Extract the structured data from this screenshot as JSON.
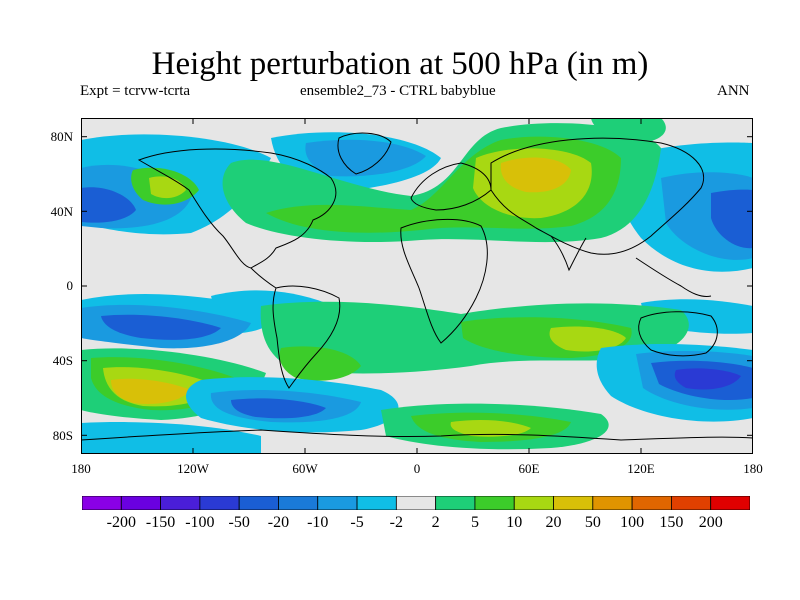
{
  "title": "Height perturbation at 500 hPa (in m)",
  "subtitle_left": "Expt = tcrvw-tcrta",
  "subtitle_center": "ensemble2_73 - CTRL babyblue",
  "subtitle_right": "ANN",
  "y_labels": [
    "80N",
    "40N",
    "0",
    "40S",
    "80S"
  ],
  "x_labels": [
    "180",
    "120W",
    "60W",
    "0",
    "60E",
    "120E",
    "180"
  ],
  "colorbar_labels": [
    "-200",
    "-150",
    "-100",
    "-50",
    "-20",
    "-10",
    "-5",
    "-2",
    "2",
    "5",
    "10",
    "20",
    "50",
    "100",
    "150",
    "200"
  ],
  "colorbar_colors": [
    "#8a00e6",
    "#6a00e0",
    "#4a1ed8",
    "#2a3ad4",
    "#1a5ed4",
    "#1a7ad8",
    "#1a9ae0",
    "#10bee6",
    "#e6e6e6",
    "#1ecf78",
    "#3ccc2a",
    "#a8d812",
    "#d8c008",
    "#e09400",
    "#e06600",
    "#e04000",
    "#e00000"
  ],
  "colors": {
    "background": "#e6e6e6",
    "neg_weak": "#10bee6",
    "neg_mid": "#1a9ae0",
    "neg_strong": "#1a5ed4",
    "neg_deep": "#2a3ad4",
    "pos_weak": "#1ecf78",
    "pos_mid": "#3ccc2a",
    "pos_strong": "#a8d812",
    "pos_peak": "#d8c008"
  }
}
